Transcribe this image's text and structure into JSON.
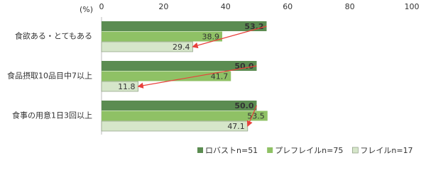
{
  "chart_data": {
    "type": "bar",
    "orientation": "horizontal",
    "x_unit_label": "(%)",
    "categories": [
      "食欲ある・とてもある",
      "食品摂取10品目中7以上",
      "食事の用意1日3回以上"
    ],
    "series": [
      {
        "name": "ロバストn=51",
        "color": "#5b8c51",
        "values": [
          53.2,
          50,
          50
        ],
        "value_labels": [
          "53.2",
          "50.0",
          "50.0"
        ]
      },
      {
        "name": "プレフレイルn=75",
        "color": "#8fc165",
        "values": [
          38.9,
          41.7,
          53.5
        ]
      },
      {
        "name": "フレイルn=17",
        "color": "#d6e6ca",
        "values": [
          29.4,
          11.8,
          47.1
        ]
      }
    ],
    "xlim": [
      0,
      100
    ],
    "xticks": [
      0,
      20,
      40,
      60,
      80,
      100
    ],
    "grid": false,
    "legend": "bottom"
  }
}
